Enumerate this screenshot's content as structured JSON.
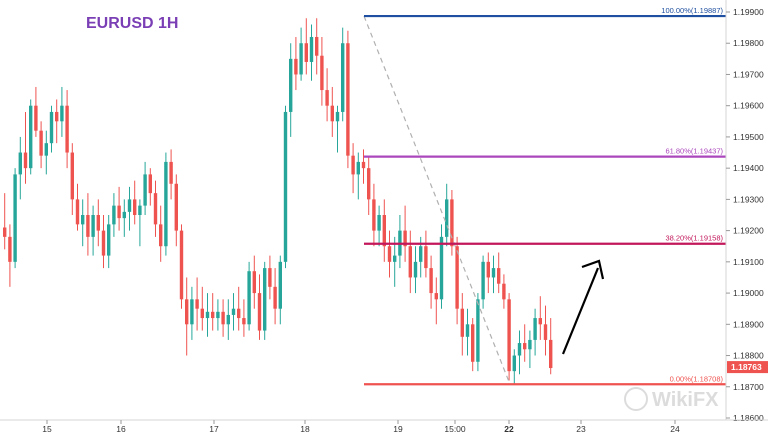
{
  "chart_data": {
    "type": "candlestick",
    "title": "EURUSD 1H",
    "xlabel": "",
    "ylabel": "",
    "ylim": [
      1.186,
      1.199
    ],
    "y_ticks": [
      "1.19900",
      "1.19800",
      "1.19700",
      "1.19600",
      "1.19500",
      "1.19400",
      "1.19300",
      "1.19200",
      "1.19100",
      "1.19000",
      "1.18900",
      "1.18800",
      "1.18700",
      "1.18600"
    ],
    "x_ticks": [
      "15",
      "16",
      "17",
      "18",
      "19",
      "15:00",
      "22",
      "23",
      "24"
    ],
    "grid": false,
    "colors": {
      "up": "#26a69a",
      "down": "#ef5350",
      "fib_100": "#1f4fa0",
      "fib_618": "#ab47bc",
      "fib_382": "#c2185b",
      "fib_0": "#ef5350",
      "title": "#7b3fb5",
      "arrow": "#000000",
      "price_tag": "#ef5350",
      "trend": "#b0b0b0"
    },
    "current_price": "1.18763",
    "fib_levels": [
      {
        "label": "100.00%(1.19887)",
        "value": 1.19887
      },
      {
        "label": "61.80%(1.19437)",
        "value": 1.19437
      },
      {
        "label": "38.20%(1.19158)",
        "value": 1.19158
      },
      {
        "label": "0.00%(1.18708)",
        "value": 1.18708
      }
    ],
    "candles": [
      [
        1.1921,
        1.1932,
        1.1914,
        1.1918
      ],
      [
        1.1918,
        1.1922,
        1.1902,
        1.191
      ],
      [
        1.191,
        1.194,
        1.1908,
        1.1938
      ],
      [
        1.1938,
        1.195,
        1.193,
        1.1945
      ],
      [
        1.1945,
        1.1958,
        1.1935,
        1.194
      ],
      [
        1.194,
        1.1962,
        1.1938,
        1.196
      ],
      [
        1.196,
        1.1966,
        1.195,
        1.1952
      ],
      [
        1.1952,
        1.1955,
        1.194,
        1.1944
      ],
      [
        1.1944,
        1.1952,
        1.1938,
        1.1948
      ],
      [
        1.1948,
        1.196,
        1.1945,
        1.1958
      ],
      [
        1.1958,
        1.1962,
        1.1948,
        1.1955
      ],
      [
        1.1955,
        1.1966,
        1.195,
        1.196
      ],
      [
        1.196,
        1.1965,
        1.194,
        1.1945
      ],
      [
        1.1945,
        1.1948,
        1.1925,
        1.193
      ],
      [
        1.193,
        1.1935,
        1.192,
        1.1922
      ],
      [
        1.1922,
        1.193,
        1.1915,
        1.1925
      ],
      [
        1.1925,
        1.1932,
        1.1912,
        1.1918
      ],
      [
        1.1918,
        1.1928,
        1.1912,
        1.1925
      ],
      [
        1.1925,
        1.193,
        1.1915,
        1.192
      ],
      [
        1.192,
        1.1925,
        1.1908,
        1.1912
      ],
      [
        1.1912,
        1.1925,
        1.1908,
        1.1922
      ],
      [
        1.1922,
        1.1932,
        1.1918,
        1.1928
      ],
      [
        1.1928,
        1.1934,
        1.192,
        1.1924
      ],
      [
        1.1924,
        1.193,
        1.1918,
        1.1926
      ],
      [
        1.1926,
        1.1934,
        1.192,
        1.193
      ],
      [
        1.193,
        1.1936,
        1.1922,
        1.1925
      ],
      [
        1.1925,
        1.193,
        1.1915,
        1.1928
      ],
      [
        1.1928,
        1.1942,
        1.1925,
        1.1938
      ],
      [
        1.1938,
        1.194,
        1.1928,
        1.1932
      ],
      [
        1.1932,
        1.1936,
        1.1918,
        1.1922
      ],
      [
        1.1922,
        1.1928,
        1.191,
        1.1915
      ],
      [
        1.1915,
        1.1945,
        1.1912,
        1.1942
      ],
      [
        1.1942,
        1.1946,
        1.193,
        1.1935
      ],
      [
        1.1935,
        1.1938,
        1.1915,
        1.192
      ],
      [
        1.192,
        1.1922,
        1.1895,
        1.1898
      ],
      [
        1.1898,
        1.1905,
        1.188,
        1.189
      ],
      [
        1.189,
        1.1902,
        1.1885,
        1.1898
      ],
      [
        1.1898,
        1.1905,
        1.1888,
        1.1895
      ],
      [
        1.1895,
        1.1902,
        1.1888,
        1.1892
      ],
      [
        1.1892,
        1.19,
        1.1886,
        1.1894
      ],
      [
        1.1894,
        1.19,
        1.1888,
        1.1892
      ],
      [
        1.1892,
        1.1898,
        1.1888,
        1.1894
      ],
      [
        1.1894,
        1.1898,
        1.1886,
        1.189
      ],
      [
        1.189,
        1.1898,
        1.1885,
        1.1893
      ],
      [
        1.1893,
        1.19,
        1.1888,
        1.1895
      ],
      [
        1.1895,
        1.1902,
        1.1888,
        1.1892
      ],
      [
        1.1892,
        1.1898,
        1.1886,
        1.189
      ],
      [
        1.189,
        1.191,
        1.1888,
        1.1907
      ],
      [
        1.1907,
        1.1912,
        1.1895,
        1.19
      ],
      [
        1.19,
        1.1906,
        1.1885,
        1.1888
      ],
      [
        1.1888,
        1.191,
        1.1885,
        1.1908
      ],
      [
        1.1908,
        1.1912,
        1.1898,
        1.1902
      ],
      [
        1.1902,
        1.1908,
        1.189,
        1.1895
      ],
      [
        1.1895,
        1.1912,
        1.189,
        1.191
      ],
      [
        1.191,
        1.196,
        1.1908,
        1.1958
      ],
      [
        1.1958,
        1.198,
        1.195,
        1.1975
      ],
      [
        1.1975,
        1.1982,
        1.1965,
        1.197
      ],
      [
        1.197,
        1.1985,
        1.1968,
        1.198
      ],
      [
        1.198,
        1.1988,
        1.197,
        1.1974
      ],
      [
        1.1974,
        1.1986,
        1.1968,
        1.1982
      ],
      [
        1.1982,
        1.1988,
        1.197,
        1.1976
      ],
      [
        1.1976,
        1.1982,
        1.196,
        1.1965
      ],
      [
        1.1965,
        1.1972,
        1.1955,
        1.196
      ],
      [
        1.196,
        1.1966,
        1.195,
        1.1955
      ],
      [
        1.1955,
        1.196,
        1.1945,
        1.1958
      ],
      [
        1.1958,
        1.1985,
        1.1955,
        1.198
      ],
      [
        1.198,
        1.1984,
        1.194,
        1.1944
      ],
      [
        1.1944,
        1.1948,
        1.1932,
        1.1938
      ],
      [
        1.1938,
        1.1945,
        1.193,
        1.1942
      ],
      [
        1.1942,
        1.1946,
        1.1935,
        1.194
      ],
      [
        1.194,
        1.1944,
        1.1925,
        1.193
      ],
      [
        1.193,
        1.1935,
        1.1915,
        1.192
      ],
      [
        1.192,
        1.1928,
        1.1915,
        1.1925
      ],
      [
        1.1925,
        1.193,
        1.191,
        1.1915
      ],
      [
        1.1915,
        1.192,
        1.1905,
        1.191
      ],
      [
        1.191,
        1.1918,
        1.1902,
        1.1912
      ],
      [
        1.1912,
        1.1925,
        1.1908,
        1.192
      ],
      [
        1.192,
        1.1928,
        1.191,
        1.1915
      ],
      [
        1.1915,
        1.192,
        1.19,
        1.1905
      ],
      [
        1.1905,
        1.1915,
        1.19,
        1.191
      ],
      [
        1.191,
        1.1918,
        1.1905,
        1.1915
      ],
      [
        1.1915,
        1.192,
        1.1905,
        1.1908
      ],
      [
        1.1908,
        1.1912,
        1.1895,
        1.19
      ],
      [
        1.19,
        1.1905,
        1.189,
        1.1898
      ],
      [
        1.1898,
        1.1922,
        1.1895,
        1.1918
      ],
      [
        1.1918,
        1.1935,
        1.1915,
        1.193
      ],
      [
        1.193,
        1.1933,
        1.1912,
        1.1915
      ],
      [
        1.1915,
        1.1918,
        1.189,
        1.1895
      ],
      [
        1.1895,
        1.19,
        1.188,
        1.1886
      ],
      [
        1.1886,
        1.1895,
        1.188,
        1.189
      ],
      [
        1.189,
        1.1892,
        1.1875,
        1.1878
      ],
      [
        1.1878,
        1.19,
        1.1875,
        1.1898
      ],
      [
        1.1898,
        1.1912,
        1.1895,
        1.191
      ],
      [
        1.191,
        1.1913,
        1.19,
        1.1905
      ],
      [
        1.1905,
        1.1912,
        1.19,
        1.1908
      ],
      [
        1.1908,
        1.1913,
        1.19,
        1.1903
      ],
      [
        1.1903,
        1.1906,
        1.1895,
        1.1898
      ],
      [
        1.1898,
        1.19,
        1.1872,
        1.1875
      ],
      [
        1.1875,
        1.1882,
        1.1871,
        1.188
      ],
      [
        1.188,
        1.1888,
        1.1874,
        1.1884
      ],
      [
        1.1884,
        1.189,
        1.1878,
        1.1882
      ],
      [
        1.1882,
        1.1888,
        1.1876,
        1.1885
      ],
      [
        1.1885,
        1.1895,
        1.188,
        1.1892
      ],
      [
        1.1892,
        1.1899,
        1.1885,
        1.189
      ],
      [
        1.189,
        1.1896,
        1.188,
        1.1885
      ],
      [
        1.1885,
        1.1892,
        1.1874,
        1.1876
      ]
    ]
  },
  "watermark": "WikiFX"
}
